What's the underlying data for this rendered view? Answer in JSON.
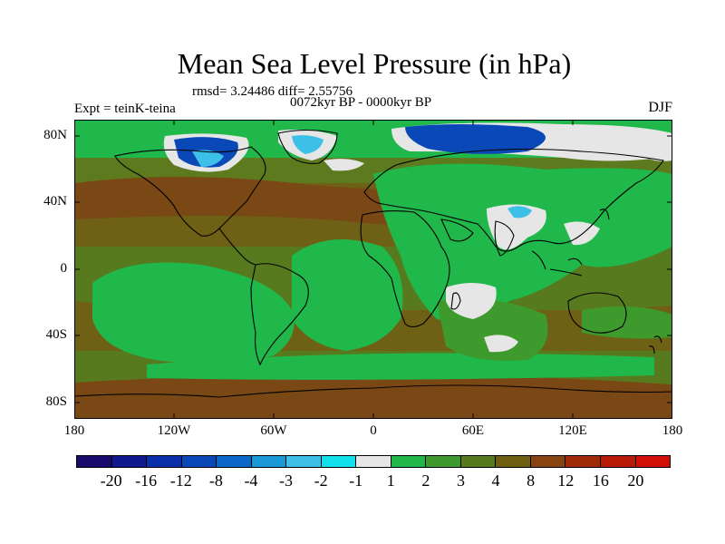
{
  "title": "Mean Sea Level Pressure (in hPa)",
  "stats": "rmsd= 3.24486 diff= 2.55756",
  "period": "0072kyr BP - 0000kyr BP",
  "experiment": "Expt = teinK-teina",
  "season": "DJF",
  "y_ticks": [
    "80N",
    "40N",
    "0",
    "40S",
    "80S"
  ],
  "x_ticks": [
    "180",
    "120W",
    "60W",
    "0",
    "60E",
    "120E",
    "180"
  ],
  "colorbar": {
    "labels": [
      "-20",
      "-16",
      "-12",
      "-8",
      "-4",
      "-3",
      "-2",
      "-1",
      "1",
      "2",
      "3",
      "4",
      "8",
      "12",
      "16",
      "20"
    ],
    "colors": [
      "#1a0a6e",
      "#101a8c",
      "#0a2fa8",
      "#0a48b8",
      "#0a68c8",
      "#1a98d8",
      "#3cc0e8",
      "#12e0ec",
      "#e6e6e6",
      "#20b84a",
      "#3e9a2c",
      "#587a1e",
      "#6e5e10",
      "#884410",
      "#a02a08",
      "#b81a08",
      "#d01008"
    ]
  },
  "map_colors": {
    "ocean_bg": "#6e6014",
    "band_olive": "#5d7a1e",
    "band_brown": "#7a4814",
    "green": "#20b84a",
    "dark_green": "#3e9a2c",
    "white": "#e6e6e6",
    "blue": "#0a48b8",
    "cyan": "#3cc0e8"
  }
}
